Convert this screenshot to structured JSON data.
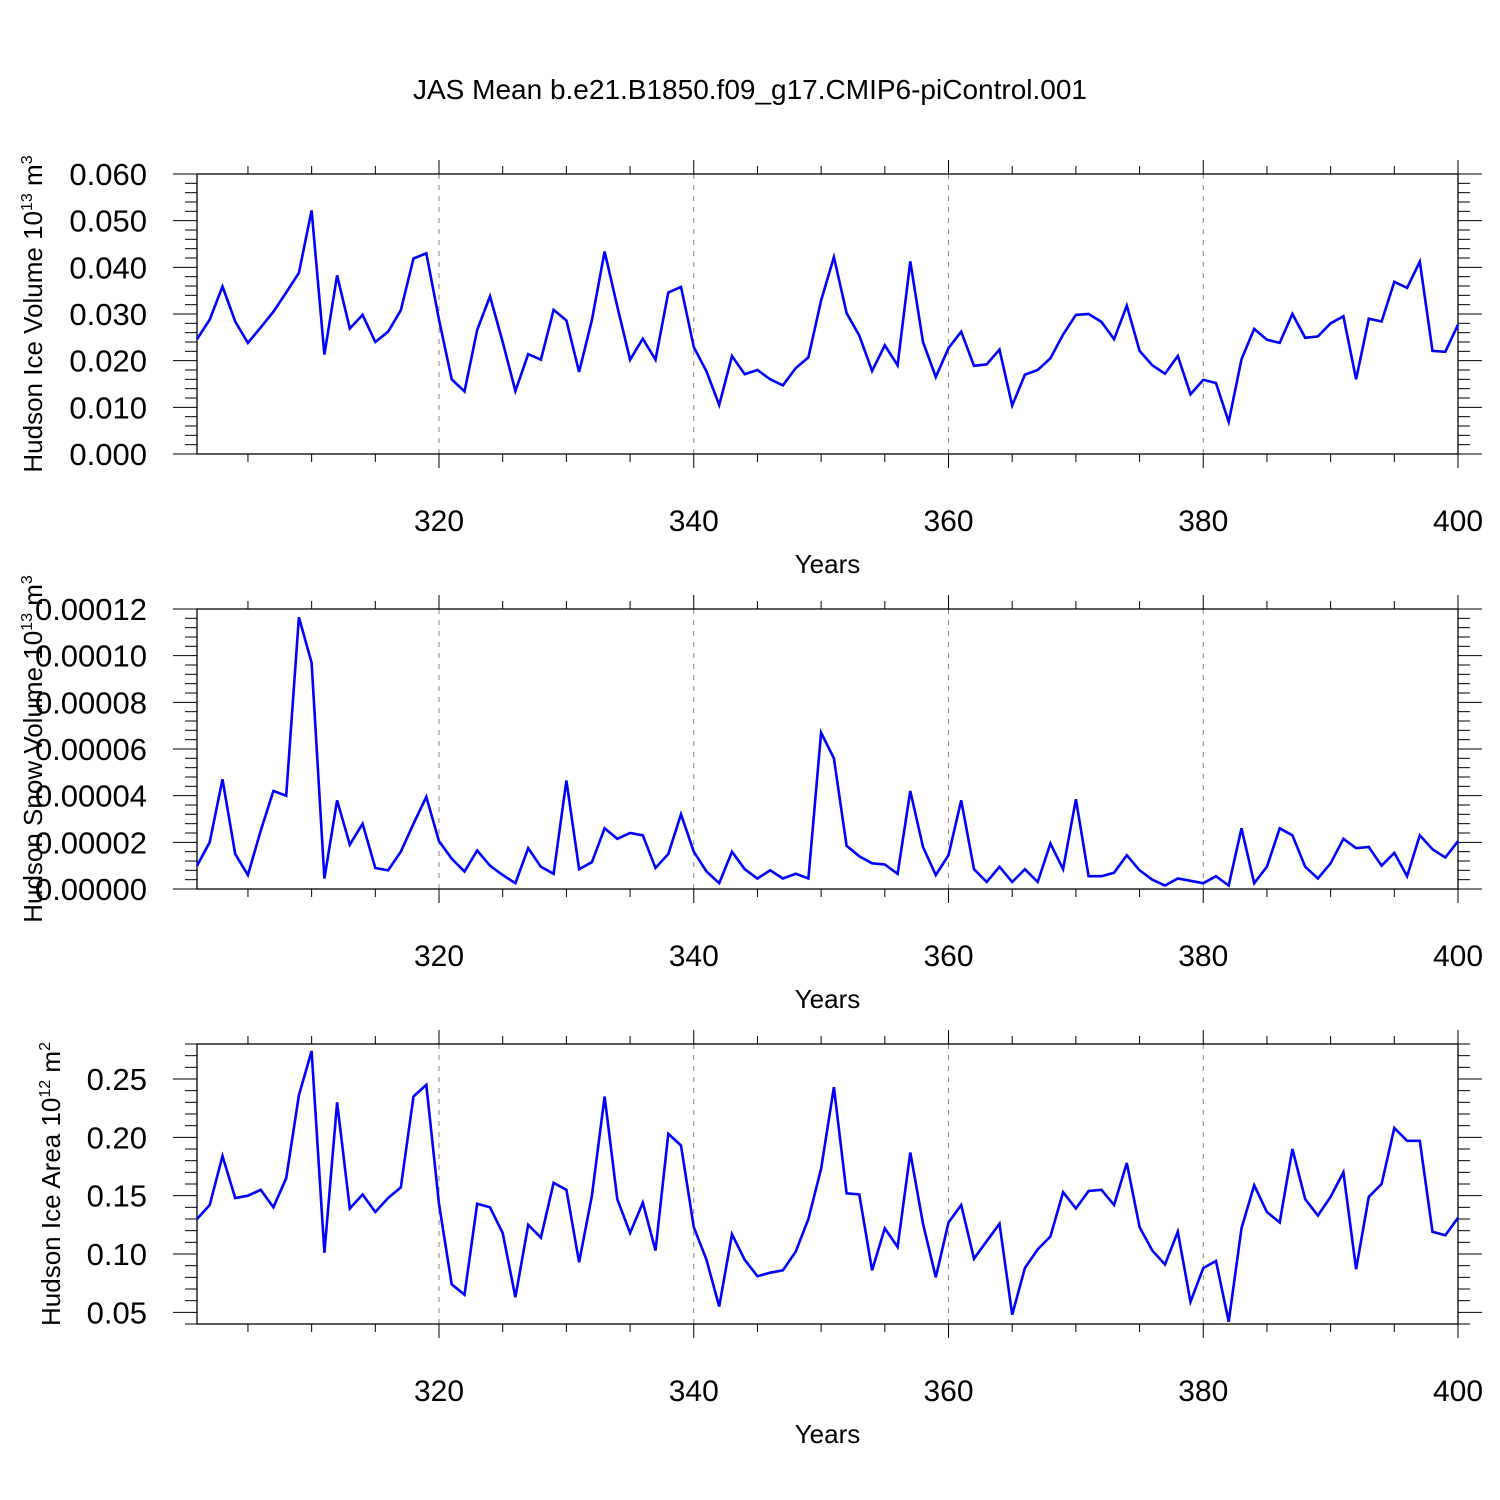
{
  "title": "JAS Mean b.e21.B1850.f09_g17.CMIP6-piControl.001",
  "colors": {
    "line": "#0000ff",
    "axis": "#000000",
    "grid": "#888888"
  },
  "chart_data": [
    {
      "type": "line",
      "ylabel": "Hudson Ice Volume 10",
      "ylabel_exp": "13",
      "ylabel_unit": " m",
      "ylabel_unit_exp": "3",
      "xlabel": "Years",
      "xlim": [
        301,
        400
      ],
      "ylim": [
        0.0,
        0.06
      ],
      "y_ticks": [
        0.0,
        0.01,
        0.02,
        0.03,
        0.04,
        0.05,
        0.06
      ],
      "y_tick_labels": [
        "0.000",
        "0.010",
        "0.020",
        "0.030",
        "0.040",
        "0.050",
        "0.060"
      ],
      "x_ticks": [
        320,
        340,
        360,
        380,
        400
      ],
      "x_tick_labels": [
        "320",
        "340",
        "360",
        "380",
        "400"
      ],
      "grid": "dashed vertical at major x ticks",
      "series": [
        {
          "values": [
            0.0246,
            0.0288,
            0.0359,
            0.0284,
            0.0238,
            0.0271,
            0.0305,
            0.0346,
            0.0388,
            0.0522,
            0.0213,
            0.0383,
            0.0269,
            0.0298,
            0.024,
            0.0262,
            0.0308,
            0.0419,
            0.043,
            0.0288,
            0.016,
            0.0134,
            0.0266,
            0.0338,
            0.024,
            0.0135,
            0.0214,
            0.0202,
            0.0309,
            0.0286,
            0.0176,
            0.0287,
            0.0434,
            0.0316,
            0.0202,
            0.0247,
            0.0202,
            0.0346,
            0.0358,
            0.0229,
            0.0177,
            0.0105,
            0.021,
            0.0171,
            0.018,
            0.016,
            0.0147,
            0.0184,
            0.0207,
            0.0329,
            0.0422,
            0.0302,
            0.0254,
            0.0178,
            0.0233,
            0.019,
            0.0413,
            0.024,
            0.0165,
            0.0227,
            0.0262,
            0.0189,
            0.0192,
            0.0224,
            0.0104,
            0.017,
            0.018,
            0.0205,
            0.0256,
            0.0298,
            0.03,
            0.0283,
            0.0246,
            0.0318,
            0.0221,
            0.019,
            0.0172,
            0.021,
            0.0128,
            0.0159,
            0.0152,
            0.0069,
            0.0203,
            0.0268,
            0.0245,
            0.0238,
            0.03,
            0.0249,
            0.0252,
            0.028,
            0.0295,
            0.016,
            0.029,
            0.0284,
            0.0369,
            0.0356,
            0.0412,
            0.0221,
            0.0219,
            0.0277
          ]
        }
      ]
    },
    {
      "type": "line",
      "ylabel": "Hudson Snow Volume 10",
      "ylabel_exp": "13",
      "ylabel_unit": " m",
      "ylabel_unit_exp": "3",
      "xlabel": "Years",
      "xlim": [
        301,
        400
      ],
      "ylim": [
        0.0,
        0.00012
      ],
      "y_ticks": [
        0.0,
        2e-05,
        4e-05,
        6e-05,
        8e-05,
        0.0001,
        0.00012
      ],
      "y_tick_labels": [
        "0.00000",
        "0.00002",
        "0.00004",
        "0.00006",
        "0.00008",
        "0.00010",
        "0.00012"
      ],
      "x_ticks": [
        320,
        340,
        360,
        380,
        400
      ],
      "x_tick_labels": [
        "320",
        "340",
        "360",
        "380",
        "400"
      ],
      "grid": "dashed vertical at major x ticks",
      "series": [
        {
          "values": [
            1e-05,
            2e-05,
            4.7e-05,
            1.5e-05,
            6e-06,
            2.5e-05,
            4.2e-05,
            4e-05,
            0.0001165,
            9.7e-05,
            4.5e-06,
            3.8e-05,
            1.9e-05,
            2.8e-05,
            9e-06,
            8e-06,
            1.6e-05,
            2.8e-05,
            3.95e-05,
            2.05e-05,
            1.3e-05,
            7.5e-06,
            1.65e-05,
            1e-05,
            6e-06,
            2.5e-06,
            1.75e-05,
            9.5e-06,
            6.5e-06,
            4.65e-05,
            8.5e-06,
            1.15e-05,
            2.6e-05,
            2.15e-05,
            2.4e-05,
            2.3e-05,
            9e-06,
            1.5e-05,
            3.2e-05,
            1.6e-05,
            7.5e-06,
            2.5e-06,
            1.6e-05,
            8.5e-06,
            4.5e-06,
            8e-06,
            4.5e-06,
            6.5e-06,
            4.5e-06,
            6.7e-05,
            5.6e-05,
            1.85e-05,
            1.4e-05,
            1.1e-05,
            1.05e-05,
            6.5e-06,
            4.2e-05,
            1.8e-05,
            6e-06,
            1.45e-05,
            3.8e-05,
            8.5e-06,
            3e-06,
            9.5e-06,
            3e-06,
            8.5e-06,
            3e-06,
            1.95e-05,
            8.5e-06,
            3.85e-05,
            5.5e-06,
            5.5e-06,
            7e-06,
            1.45e-05,
            8e-06,
            4e-06,
            1.5e-06,
            4.5e-06,
            3.5e-06,
            2.5e-06,
            5.5e-06,
            1.5e-06,
            2.6e-05,
            2.5e-06,
            9.5e-06,
            2.6e-05,
            2.3e-05,
            9.5e-06,
            4.5e-06,
            1.1e-05,
            2.15e-05,
            1.75e-05,
            1.8e-05,
            1e-05,
            1.55e-05,
            5.5e-06,
            2.3e-05,
            1.7e-05,
            1.35e-05,
            2.05e-05
          ]
        }
      ]
    },
    {
      "type": "line",
      "ylabel": "Hudson Ice Area 10",
      "ylabel_exp": "12",
      "ylabel_unit": " m",
      "ylabel_unit_exp": "2",
      "xlabel": "Years",
      "xlim": [
        301,
        400
      ],
      "ylim": [
        0.04,
        0.28
      ],
      "y_ticks": [
        0.05,
        0.1,
        0.15,
        0.2,
        0.25
      ],
      "y_tick_labels": [
        "0.05",
        "0.10",
        "0.15",
        "0.20",
        "0.25"
      ],
      "x_ticks": [
        320,
        340,
        360,
        380,
        400
      ],
      "x_tick_labels": [
        "320",
        "340",
        "360",
        "380",
        "400"
      ],
      "grid": "dashed vertical at major x ticks",
      "series": [
        {
          "values": [
            0.13,
            0.142,
            0.184,
            0.148,
            0.15,
            0.155,
            0.14,
            0.165,
            0.236,
            0.274,
            0.101,
            0.23,
            0.139,
            0.151,
            0.136,
            0.148,
            0.157,
            0.235,
            0.245,
            0.143,
            0.074,
            0.065,
            0.143,
            0.14,
            0.118,
            0.063,
            0.125,
            0.114,
            0.161,
            0.155,
            0.093,
            0.15,
            0.235,
            0.147,
            0.118,
            0.144,
            0.103,
            0.203,
            0.193,
            0.123,
            0.095,
            0.055,
            0.117,
            0.095,
            0.081,
            0.084,
            0.086,
            0.102,
            0.13,
            0.173,
            0.243,
            0.152,
            0.151,
            0.086,
            0.122,
            0.106,
            0.187,
            0.126,
            0.08,
            0.127,
            0.142,
            0.096,
            0.111,
            0.126,
            0.048,
            0.088,
            0.104,
            0.115,
            0.153,
            0.139,
            0.154,
            0.155,
            0.142,
            0.178,
            0.123,
            0.103,
            0.091,
            0.119,
            0.059,
            0.088,
            0.094,
            0.042,
            0.122,
            0.159,
            0.136,
            0.127,
            0.19,
            0.147,
            0.133,
            0.149,
            0.17,
            0.087,
            0.149,
            0.16,
            0.208,
            0.197,
            0.197,
            0.119,
            0.116,
            0.131
          ]
        }
      ]
    }
  ]
}
